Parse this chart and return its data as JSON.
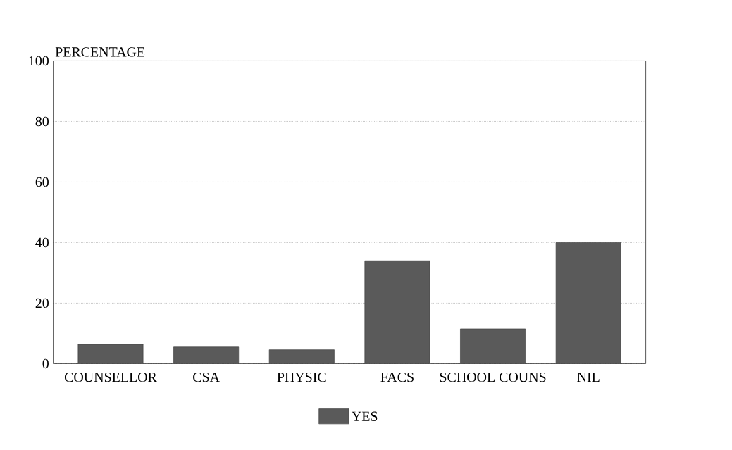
{
  "chart_data": {
    "type": "bar",
    "ylabel": "PERCENTAGE",
    "categories": [
      "COUNSELLOR",
      "CSA",
      "PHYSIC",
      "FACS",
      "SCHOOL COUNS",
      "NIL"
    ],
    "series": [
      {
        "name": "YES",
        "color": "#5a5a5a",
        "values": [
          6.4,
          5.5,
          4.6,
          34,
          11.5,
          40
        ]
      }
    ],
    "ylim": [
      0,
      100
    ],
    "yticks": [
      0,
      20,
      40,
      60,
      80,
      100
    ],
    "grid": "y",
    "legend": "bottom"
  }
}
